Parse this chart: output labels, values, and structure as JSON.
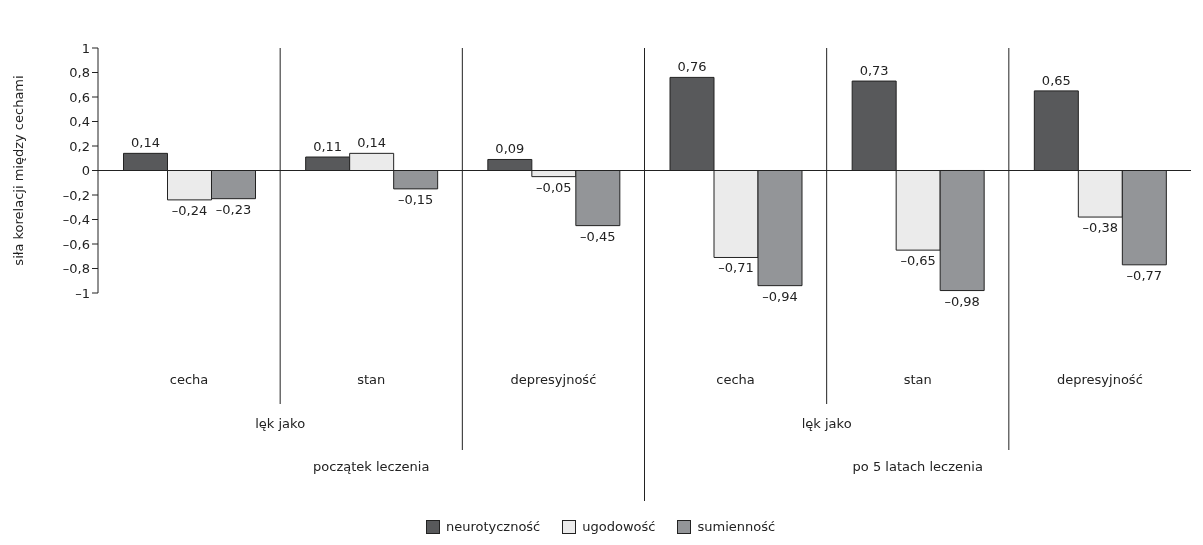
{
  "chart_data": {
    "type": "bar",
    "ylabel": "siła korelacji między cechami",
    "categories": [
      "cecha",
      "stan",
      "depresyjność",
      "cecha",
      "stan",
      "depresyjność"
    ],
    "annotations": [
      "lęk jako",
      "początek leczenia",
      "lęk jako",
      "po 5 latach leczenia"
    ],
    "series": [
      {
        "name": "neurotyczność",
        "color": "#58595b",
        "values": [
          0.14,
          0.11,
          0.09,
          0.76,
          0.73,
          0.65
        ],
        "value_labels": [
          "0,14",
          "0,11",
          "0,09",
          "0,76",
          "0,73",
          "0,65"
        ]
      },
      {
        "name": "ugodowość",
        "color": "#ebebeb",
        "values": [
          -0.24,
          0.14,
          -0.05,
          -0.71,
          -0.65,
          -0.38
        ],
        "value_labels": [
          "–0,24",
          "0,14",
          "–0,05",
          "–0,71",
          "–0,65",
          "–0,38"
        ]
      },
      {
        "name": "sumienność",
        "color": "#939598",
        "values": [
          -0.23,
          -0.15,
          -0.45,
          -0.94,
          -0.98,
          -0.77
        ],
        "value_labels": [
          "–0,23",
          "–0,15",
          "–0,45",
          "–0,94",
          "–0,98",
          "–0,77"
        ]
      }
    ],
    "ylim": [
      -1,
      1
    ],
    "yticks": [
      {
        "value": -1,
        "label": "–1"
      },
      {
        "value": -0.8,
        "label": "–0,8"
      },
      {
        "value": -0.6,
        "label": "–0,6"
      },
      {
        "value": -0.4,
        "label": "–0,4"
      },
      {
        "value": -0.2,
        "label": "–0,2"
      },
      0,
      {
        "value": 0.2,
        "label": "0,2"
      },
      {
        "value": 0.4,
        "label": "0,4"
      },
      {
        "value": 0.6,
        "label": "0,6"
      },
      {
        "value": 0.8,
        "label": "0,8"
      },
      1
    ],
    "ref_lines": [
      {
        "axis": "y",
        "value": 0
      }
    ],
    "grid": false,
    "legend": "bottom"
  }
}
